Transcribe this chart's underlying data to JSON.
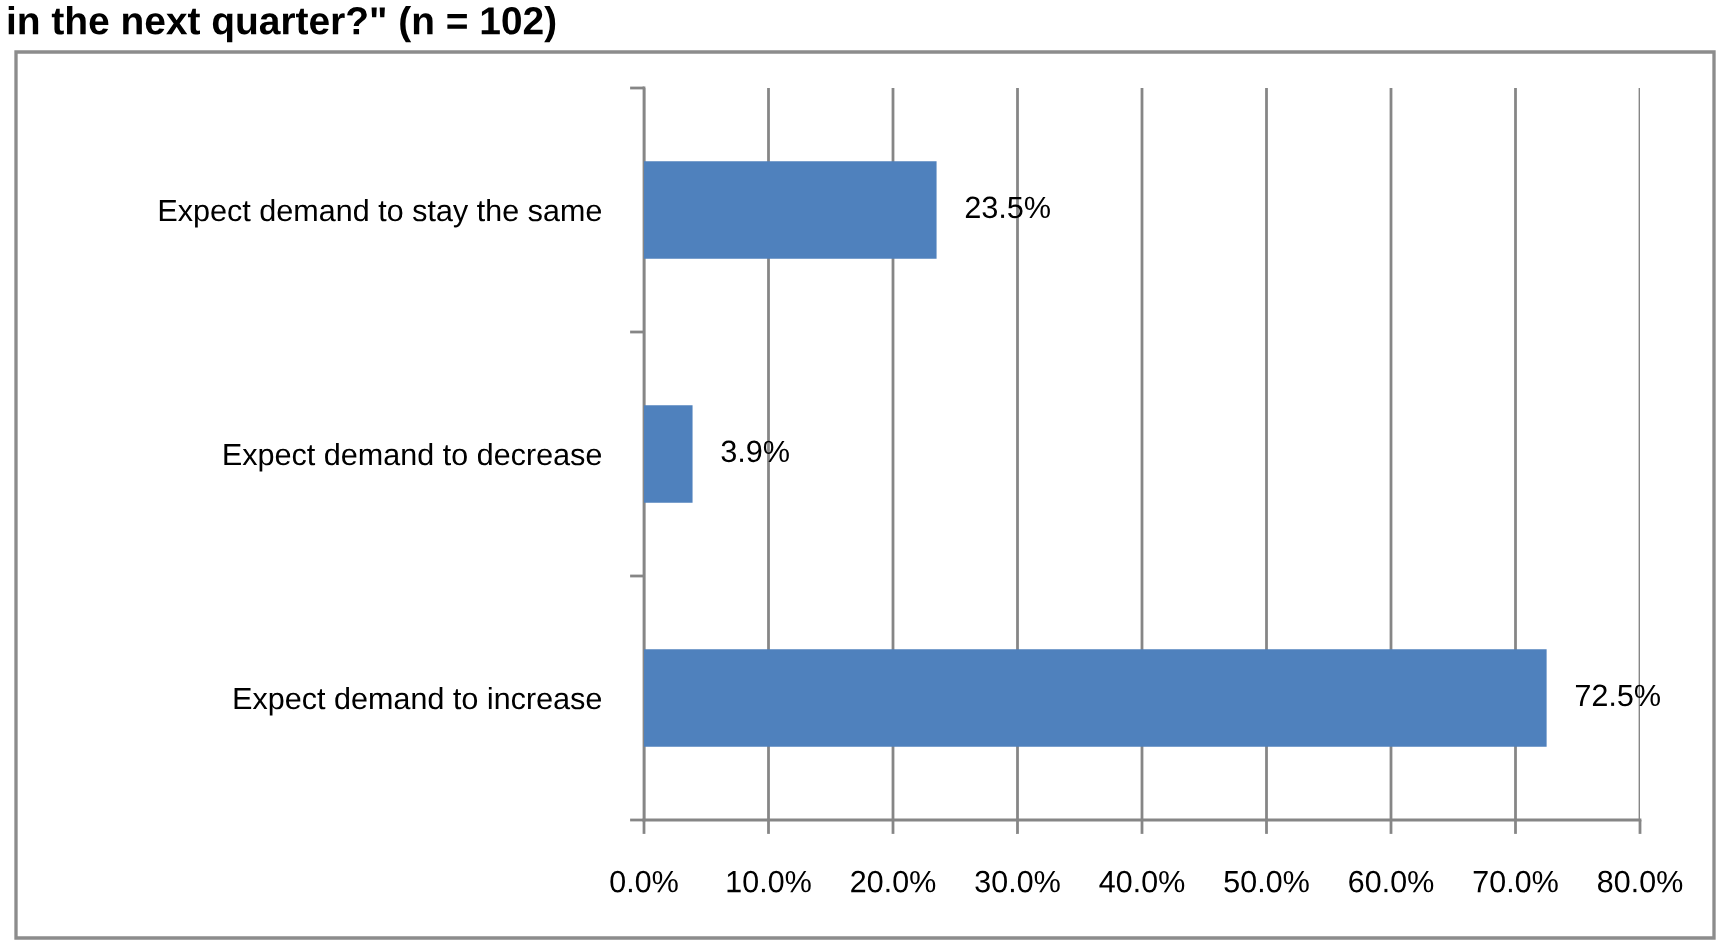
{
  "chart_data": {
    "type": "bar",
    "orientation": "horizontal",
    "title": "in the next quarter?\" (n = 102)",
    "categories": [
      "Expect demand to stay the same",
      "Expect demand to decrease",
      "Expect demand to increase"
    ],
    "values": [
      23.5,
      3.9,
      72.5
    ],
    "color": "#4f81bd",
    "value_labels": [
      "23.5%",
      "3.9%",
      "72.5%"
    ],
    "xlim": [
      0,
      80
    ],
    "xticks": [
      {
        "value": 0,
        "label": "0.0%"
      },
      {
        "value": 10,
        "label": "10.0%"
      },
      {
        "value": 20,
        "label": "20.0%"
      },
      {
        "value": 30,
        "label": "30.0%"
      },
      {
        "value": 40,
        "label": "40.0%"
      },
      {
        "value": 50,
        "label": "50.0%"
      },
      {
        "value": 60,
        "label": "60.0%"
      },
      {
        "value": 70,
        "label": "70.0%"
      },
      {
        "value": 80,
        "label": "80.0%"
      }
    ],
    "grid": "x"
  }
}
